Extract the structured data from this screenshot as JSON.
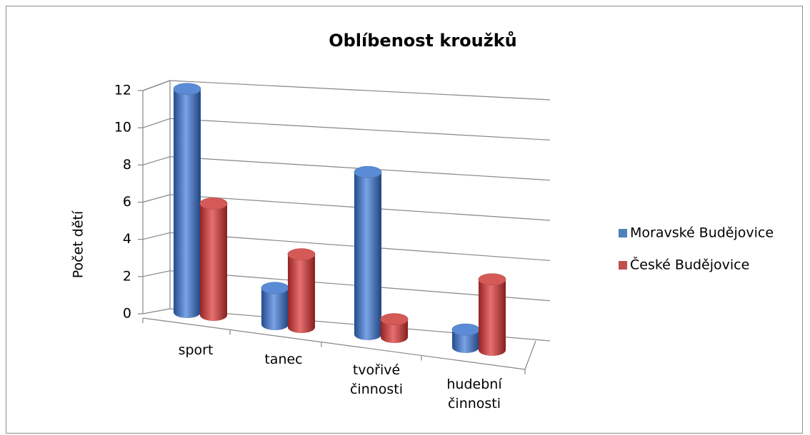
{
  "chart_data": {
    "type": "bar3d",
    "title": "Oblíbenost kroužků",
    "y_label": "Počet dětí",
    "categories": [
      "sport",
      "tanec",
      "tvořivé činnosti",
      "hudební činnosti"
    ],
    "series": [
      {
        "name": "Moravské Budějovice",
        "color": "#4f81bd",
        "values": [
          12,
          2,
          9,
          1
        ]
      },
      {
        "name": "České Budějovice",
        "color": "#c0504d",
        "values": [
          6,
          4,
          1,
          4
        ]
      }
    ],
    "ylim": [
      0,
      12
    ],
    "yticks": [
      0,
      2,
      4,
      6,
      8,
      10,
      12
    ],
    "grid": true,
    "legend": "right"
  }
}
